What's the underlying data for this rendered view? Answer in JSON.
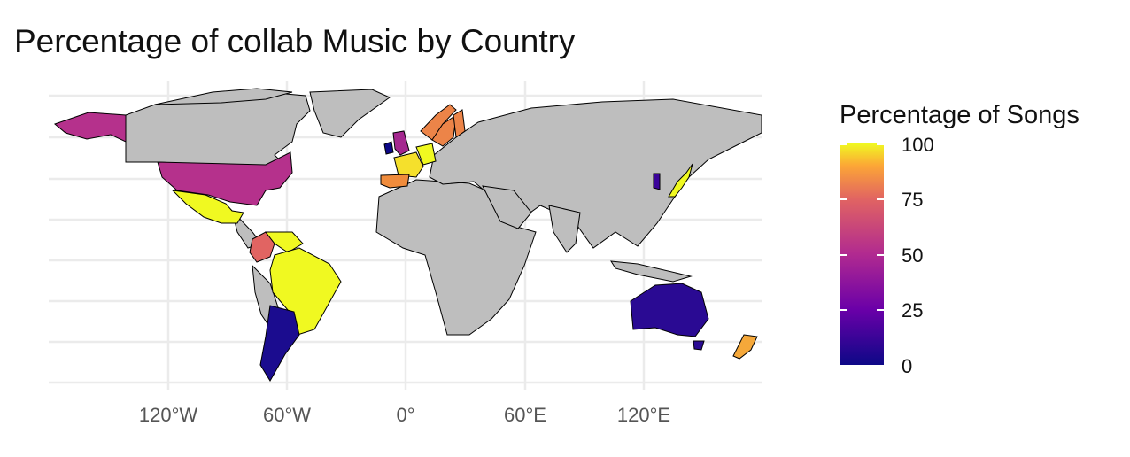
{
  "title": "Percentage of collab Music by Country",
  "legend": {
    "title": "Percentage of Songs",
    "ticks": [
      "100",
      "75",
      "50",
      "25",
      "0"
    ],
    "palette": "plasma",
    "colors": {
      "low": "#0d0887",
      "mid": "#b12a90",
      "high": "#f0f921"
    }
  },
  "x_axis": {
    "ticks": [
      "120°W",
      "60°W",
      "0°",
      "60°E",
      "120°E"
    ]
  },
  "map": {
    "projection": "equirectangular",
    "lon_range": [
      -180,
      180
    ],
    "no_data_color": "#bebebe",
    "countries": [
      {
        "name": "United States",
        "pct": 45
      },
      {
        "name": "Alaska",
        "pct": 45
      },
      {
        "name": "Mexico",
        "pct": 100
      },
      {
        "name": "Colombia",
        "pct": 60
      },
      {
        "name": "Venezuela",
        "pct": 100
      },
      {
        "name": "Brazil",
        "pct": 100
      },
      {
        "name": "Argentina",
        "pct": 5
      },
      {
        "name": "United Kingdom",
        "pct": 40
      },
      {
        "name": "Ireland",
        "pct": 5
      },
      {
        "name": "France",
        "pct": 95
      },
      {
        "name": "Spain",
        "pct": 80
      },
      {
        "name": "Germany",
        "pct": 100
      },
      {
        "name": "Sweden",
        "pct": 75
      },
      {
        "name": "Norway",
        "pct": 75
      },
      {
        "name": "Finland",
        "pct": 75
      },
      {
        "name": "Japan",
        "pct": 100
      },
      {
        "name": "South Korea",
        "pct": 10
      },
      {
        "name": "Australia",
        "pct": 10
      },
      {
        "name": "New Zealand",
        "pct": 85
      }
    ]
  }
}
